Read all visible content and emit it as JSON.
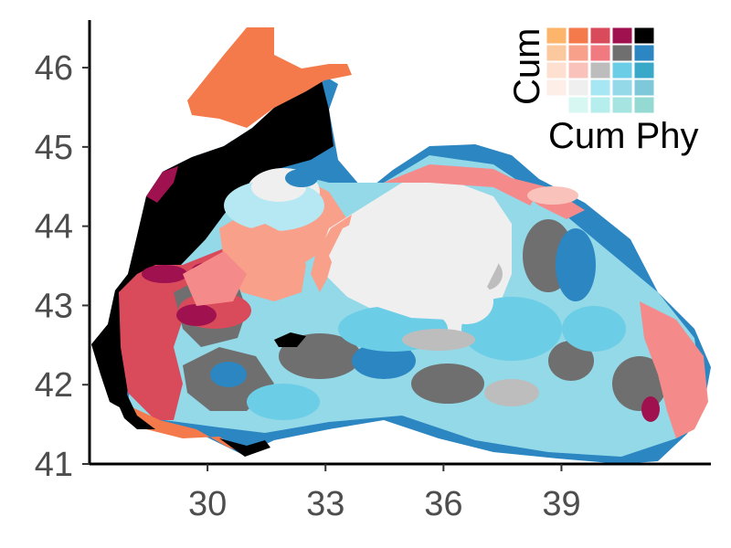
{
  "map": {
    "axes": {
      "x": {
        "ticks": [
          "30",
          "33",
          "36",
          "39"
        ],
        "range": [
          27.0,
          42.8
        ]
      },
      "y": {
        "ticks": [
          "41",
          "42",
          "43",
          "44",
          "45",
          "46"
        ],
        "range": [
          41.0,
          46.6
        ]
      }
    },
    "legend": {
      "title_x": "Cum Phy",
      "title_y": "Cum",
      "placement": "top-right",
      "palette": [
        [
          "#fdb46b",
          "#f47a4c",
          "#d94a5b",
          "#a0124f",
          "#000000"
        ],
        [
          "#fcc99f",
          "#f8a08a",
          "#f07a80",
          "#6f6f6f",
          "#2b86c2"
        ],
        [
          "#fde0cf",
          "#f9c3bb",
          "#bdbdbd",
          "#6ccde6",
          "#3aa8c8"
        ],
        [
          "#fdeee8",
          "#efefef",
          "#a7e6f3",
          "#93d9e8",
          "#7fc8da"
        ],
        [
          "#ffffff",
          "#d7f7f3",
          "#b6eeee",
          "#a5e4e0",
          "#94d9d2"
        ]
      ]
    },
    "colors": {
      "black": "#000000",
      "darkred": "#a0124f",
      "red": "#d94a5b",
      "orange": "#f47a4c",
      "salmon": "#f8a08a",
      "pink": "#f58a8a",
      "lightpink": "#f9c3bb",
      "gray": "#6f6f6f",
      "lightgray": "#bdbdbd",
      "offwhite": "#efefef",
      "blue": "#2b86c2",
      "cyan": "#6ccde6",
      "lightblue": "#93d9e8",
      "paleblue": "#b5e8f3"
    }
  }
}
